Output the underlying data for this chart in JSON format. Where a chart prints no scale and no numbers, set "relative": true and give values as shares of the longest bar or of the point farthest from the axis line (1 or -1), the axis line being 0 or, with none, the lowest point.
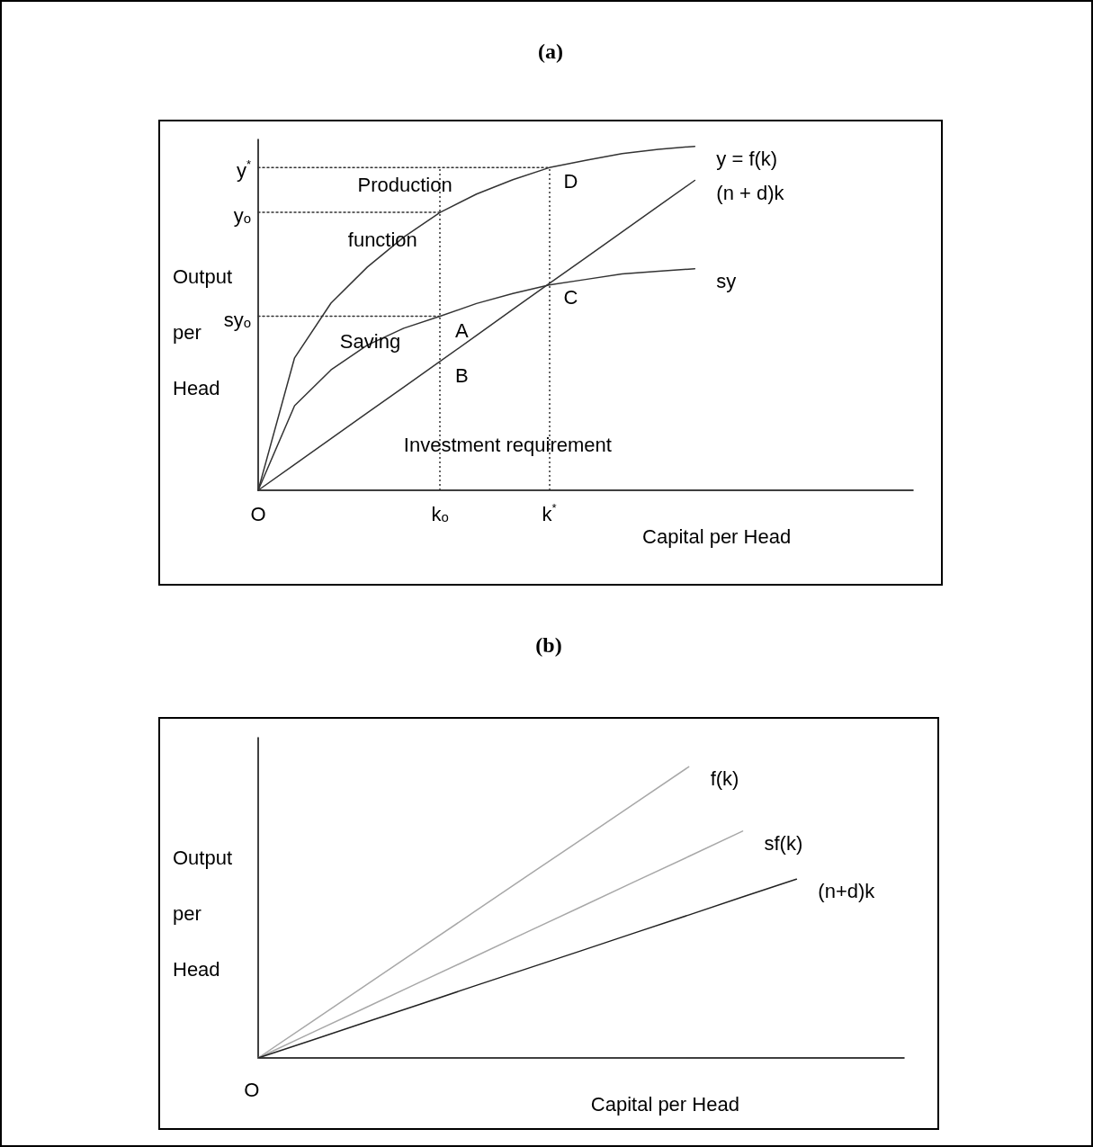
{
  "chart_data": [
    {
      "type": "line",
      "title": "(a)",
      "xlabel": "Capital per Head",
      "ylabel": "Output per Head",
      "relative": true,
      "tick_labels": "x",
      "grid": false,
      "marker": "none",
      "categories": [
        "O",
        null,
        null,
        null,
        null,
        "kₒ",
        null,
        null,
        "k$^{*}$",
        null,
        null,
        null,
        null,
        null,
        null,
        null,
        null,
        null,
        null
      ],
      "series": [
        {
          "name": "y = f(k)",
          "color": "#333333",
          "values": [
            0,
            0.385,
            0.544,
            0.649,
            0.736,
            0.808,
            0.861,
            0.903,
            0.938,
            0.959,
            0.979,
            0.991,
            1,
            null,
            null,
            null,
            null,
            null,
            null
          ]
        },
        {
          "name": "(n + d)k",
          "color": "#333333",
          "values": [
            0,
            0.075,
            0.15,
            0.225,
            0.3,
            0.375,
            0.45,
            0.526,
            0.601,
            0.676,
            0.751,
            0.826,
            0.901,
            null,
            null,
            null,
            null,
            null,
            null
          ]
        },
        {
          "name": "sy",
          "color": "#333333",
          "values": [
            0,
            0.246,
            0.35,
            0.422,
            0.471,
            0.506,
            0.543,
            0.572,
            0.597,
            0.613,
            0.629,
            0.637,
            0.644,
            null,
            null,
            null,
            null,
            null,
            null
          ]
        },
        {
          "name": "y$^{*}$",
          "color": "#333333",
          "line_style": "dotted",
          "values": [
            0.938,
            0.938,
            0.938,
            0.938,
            0.938,
            0.938,
            0.938,
            0.938,
            0.938,
            null,
            null,
            null,
            null,
            null,
            null,
            null,
            null,
            null,
            null
          ]
        },
        {
          "name": "yₒ",
          "color": "#333333",
          "line_style": "dotted",
          "values": [
            0.808,
            0.808,
            0.808,
            0.808,
            0.808,
            0.808,
            null,
            null,
            null,
            null,
            null,
            null,
            null,
            null,
            null,
            null,
            null,
            null,
            null
          ]
        },
        {
          "name": "syₒ",
          "color": "#333333",
          "line_style": "dotted",
          "values": [
            0.506,
            0.506,
            0.506,
            0.506,
            0.506,
            0.506,
            null,
            null,
            null,
            null,
            null,
            null,
            null,
            null,
            null,
            null,
            null,
            null,
            null
          ]
        }
      ],
      "ref_lines": [
        {
          "axis": "x",
          "value": "kₒ",
          "color": "#333333",
          "line_style": "dotted"
        },
        {
          "axis": "x",
          "value": "k$^{*}$",
          "color": "#333333",
          "line_style": "dotted"
        }
      ],
      "annotations": [
        {
          "text": "D",
          "x": "k$^{*}$",
          "y": 0.938
        },
        {
          "text": "A",
          "x": "kₒ",
          "y": 0.506
        },
        {
          "text": "C",
          "x": "k$^{*}$",
          "y": 0.601
        },
        {
          "text": "B",
          "x": "kₒ",
          "y": 0.375
        },
        "Production",
        "function",
        "Saving",
        "Investment requirement"
      ]
    },
    {
      "type": "line",
      "title": "(b)",
      "xlabel": "Capital per Head",
      "ylabel": "Output per Head",
      "relative": true,
      "grid": false,
      "marker": "none",
      "categories": [
        null,
        null,
        null,
        null,
        null,
        null,
        null,
        null,
        null,
        null,
        null,
        null,
        null
      ],
      "annotations": [
        "O"
      ],
      "series": [
        {
          "name": "f(k)",
          "color": "#a8a8a8",
          "values": [
            0,
            0.125,
            0.25,
            0.375,
            0.5,
            0.625,
            0.75,
            0.875,
            1,
            null,
            null,
            null,
            null
          ]
        },
        {
          "name": "sf(k)",
          "color": "#a8a8a8",
          "values": [
            0,
            0.087,
            0.173,
            0.26,
            0.346,
            0.433,
            0.519,
            0.606,
            0.692,
            0.779,
            null,
            null,
            null
          ]
        },
        {
          "name": "(n+d)k",
          "color": "#222222",
          "values": [
            0,
            0.061,
            0.123,
            0.184,
            0.246,
            0.307,
            0.368,
            0.43,
            0.491,
            0.553,
            0.614,
            null,
            null
          ]
        }
      ]
    }
  ]
}
